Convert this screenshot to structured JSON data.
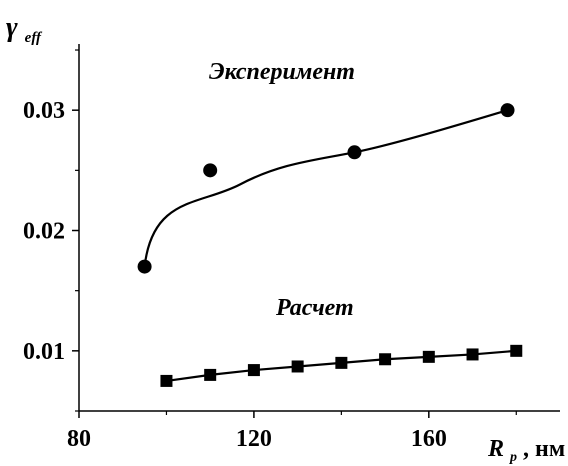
{
  "chart_data": {
    "type": "scatter",
    "ylabel": {
      "main": "γ",
      "sub": "eff"
    },
    "xlabel": {
      "main": "R",
      "sub": "p",
      "unit": ", нм"
    },
    "xlim": [
      80,
      190
    ],
    "ylim": [
      0.005,
      0.0355
    ],
    "xticks": [
      80,
      120,
      160
    ],
    "xtick_labels": [
      "80",
      "120",
      "160"
    ],
    "yticks": [
      0.01,
      0.02,
      0.03
    ],
    "ytick_labels": [
      "0.01",
      "0.02",
      "0.03"
    ],
    "grid": false,
    "series": [
      {
        "name": "Эксперимент",
        "marker": "circle",
        "curve": "smooth",
        "points": [
          {
            "x": 95,
            "y": 0.017
          },
          {
            "x": 110,
            "y": 0.025
          },
          {
            "x": 143,
            "y": 0.0265
          },
          {
            "x": 178,
            "y": 0.03
          }
        ]
      },
      {
        "name": "Расчет",
        "marker": "square",
        "curve": "straight",
        "points": [
          {
            "x": 100,
            "y": 0.0075
          },
          {
            "x": 110,
            "y": 0.008
          },
          {
            "x": 120,
            "y": 0.0084
          },
          {
            "x": 130,
            "y": 0.0087
          },
          {
            "x": 140,
            "y": 0.009
          },
          {
            "x": 150,
            "y": 0.0093
          },
          {
            "x": 160,
            "y": 0.0095
          },
          {
            "x": 170,
            "y": 0.0097
          },
          {
            "x": 180,
            "y": 0.01
          }
        ]
      }
    ]
  }
}
